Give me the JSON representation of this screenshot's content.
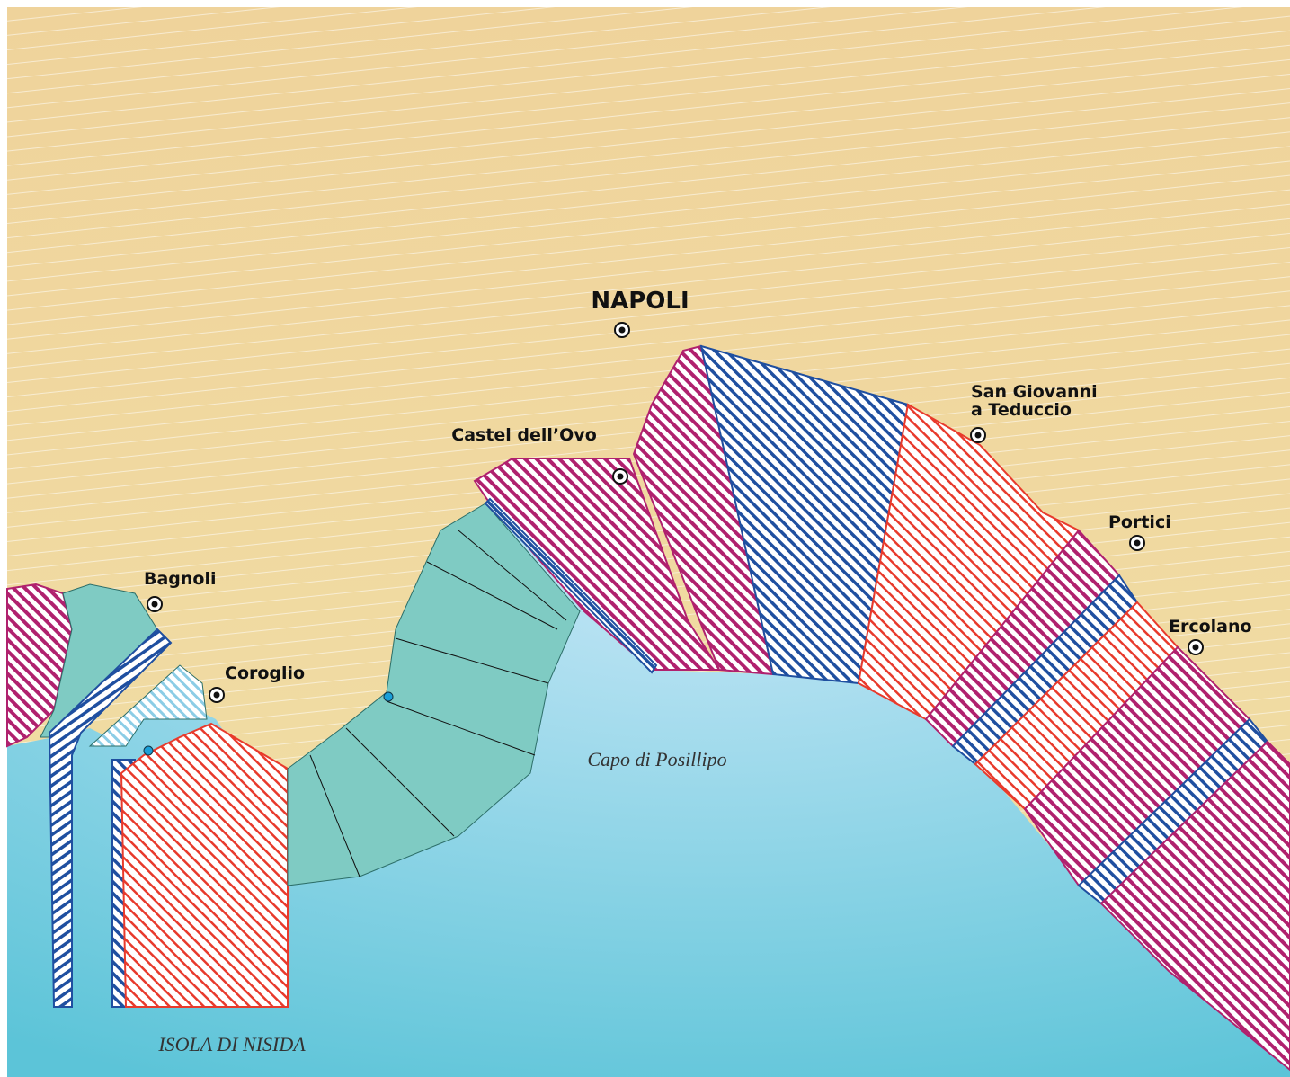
{
  "places": [
    {
      "label": "NAPOLI"
    },
    {
      "label": "Castel dell’Ovo"
    },
    {
      "label": [
        "San Giovanni",
        "a Teduccio"
      ]
    },
    {
      "label": "Portici"
    },
    {
      "label": "Ercolano"
    },
    {
      "label": "Bagnoli"
    },
    {
      "label": "Coroglio"
    }
  ],
  "sea_labels": [
    "Capo di Posillipo",
    "ISOLA DI NISIDA"
  ]
}
